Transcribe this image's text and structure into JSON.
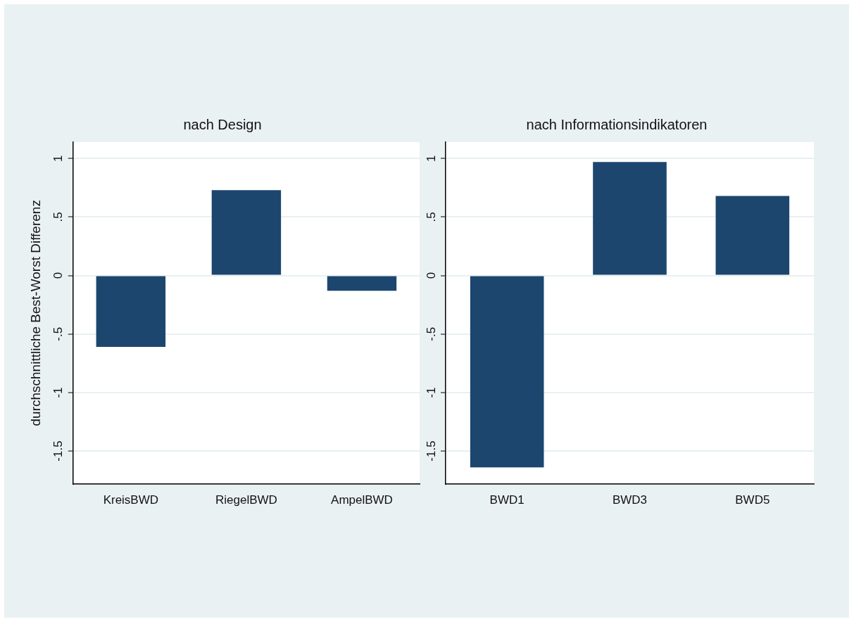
{
  "chart_data": [
    {
      "type": "bar",
      "title": "nach Design",
      "ylabel": "durchschnittliche Best-Worst Differenz",
      "categories": [
        "KreisBWD",
        "RiegelBWD",
        "AmpelBWD"
      ],
      "series": [
        {
          "color": "#1c466e",
          "values": [
            -0.61,
            0.73,
            -0.13
          ]
        }
      ],
      "ylim": [
        -1.78,
        1.14
      ],
      "yticks": [
        {
          "value": -1.5,
          "label": "-1.5"
        },
        {
          "value": -1,
          "label": "-1"
        },
        {
          "value": -0.5,
          "label": "-.5"
        },
        {
          "value": 0,
          "label": "0"
        },
        {
          "value": 0.5,
          "label": ".5"
        },
        {
          "value": 1,
          "label": "1"
        }
      ],
      "grid": "y",
      "legend": false
    },
    {
      "type": "bar",
      "title": "nach Informationsindikatoren",
      "categories": [
        "BWD1",
        "BWD3",
        "BWD5"
      ],
      "series": [
        {
          "color": "#1c466e",
          "values": [
            -1.64,
            0.97,
            0.68
          ]
        }
      ],
      "ylim": [
        -1.78,
        1.14
      ],
      "yticks": [
        {
          "value": -1.5,
          "label": "-1.5"
        },
        {
          "value": -1,
          "label": "-1"
        },
        {
          "value": -0.5,
          "label": "-.5"
        },
        {
          "value": 0,
          "label": "0"
        },
        {
          "value": 0.5,
          "label": ".5"
        },
        {
          "value": 1,
          "label": "1"
        }
      ],
      "grid": "y",
      "legend": false
    }
  ]
}
